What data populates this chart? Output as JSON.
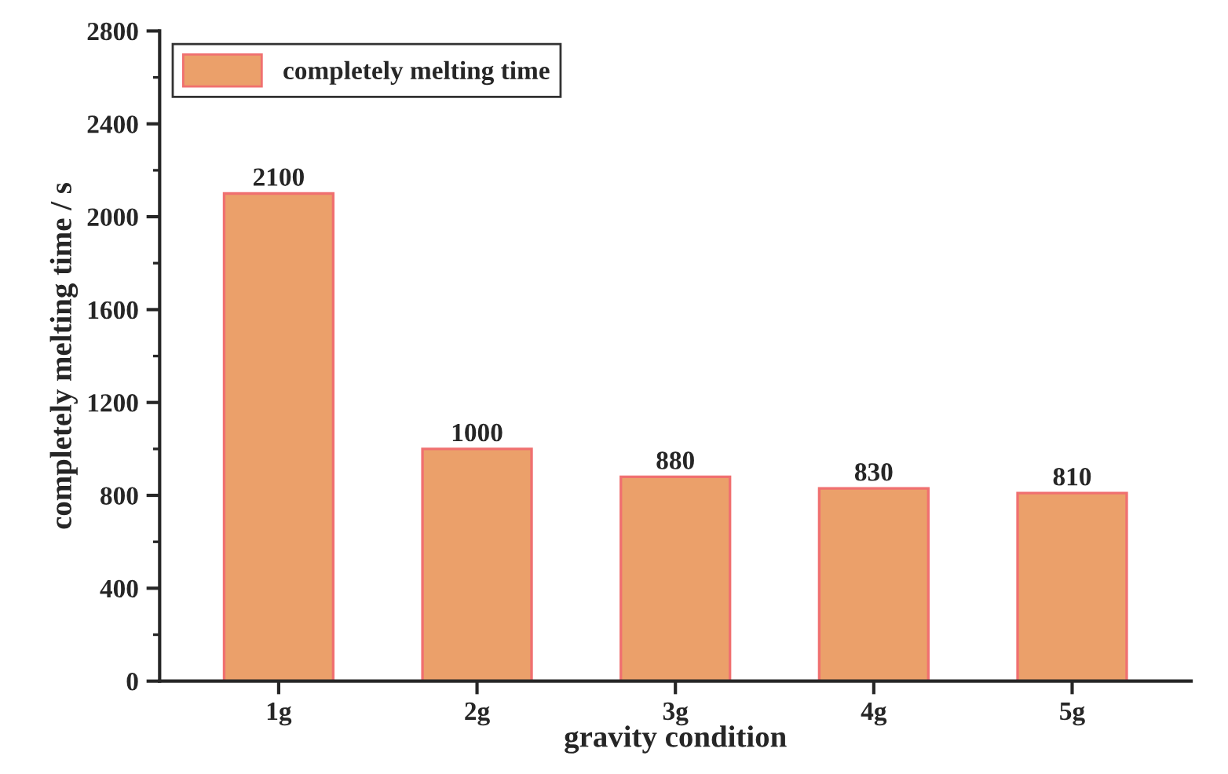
{
  "chart_data": {
    "type": "bar",
    "xlabel": "gravity condition",
    "ylabel": "completely melting time / s",
    "categories": [
      "1g",
      "2g",
      "3g",
      "4g",
      "5g"
    ],
    "series": [
      {
        "name": "completely melting time",
        "color": "#eba06a",
        "values": [
          2100,
          1000,
          880,
          830,
          810
        ]
      }
    ],
    "ylim": [
      0,
      2800
    ],
    "yticks": [
      0,
      400,
      800,
      1200,
      1600,
      2000,
      2400,
      2800
    ],
    "data_labels": true,
    "legend": "top left",
    "grid": false
  }
}
